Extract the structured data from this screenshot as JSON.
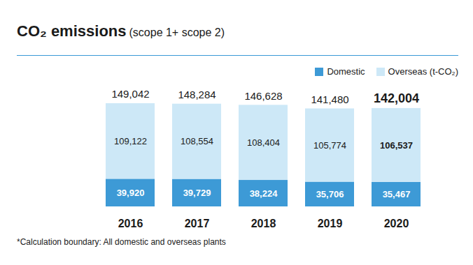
{
  "chart_data": {
    "type": "bar",
    "stacked": true,
    "title": "CO₂ emissions",
    "subtitle": "(scope 1+ scope 2)",
    "caption": "*Calculation boundary: All domestic and overseas plants",
    "categories": [
      "2016",
      "2017",
      "2018",
      "2019",
      "2020"
    ],
    "series": [
      {
        "name": "Domestic",
        "color": "#3d9ad6",
        "values": [
          39920,
          39729,
          38224,
          35706,
          35467
        ],
        "value_labels": [
          "39,920",
          "39,729",
          "38,224",
          "35,706",
          "35,467"
        ]
      },
      {
        "name": "Overseas (t-CO₂)",
        "color": "#cde8f7",
        "values": [
          109122,
          108554,
          108404,
          105774,
          106537
        ],
        "value_labels": [
          "109,122",
          "108,554",
          "108,404",
          "105,774",
          "106,537"
        ]
      }
    ],
    "totals": [
      149042,
      148284,
      146628,
      141480,
      142004
    ],
    "total_labels": [
      "149,042",
      "148,284",
      "146,628",
      "141,480",
      "142,004"
    ],
    "ylim": [
      0,
      150000
    ],
    "yticks": [],
    "tick_labels": "x",
    "data_labels": true,
    "legend": "top-right"
  }
}
